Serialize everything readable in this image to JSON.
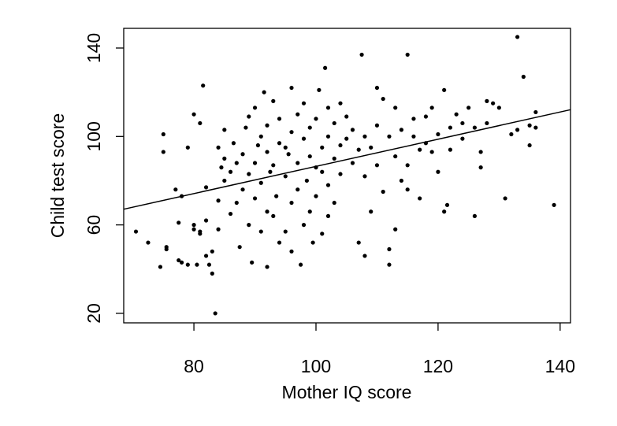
{
  "chart_data": {
    "type": "scatter",
    "x_label": "Mother IQ score",
    "y_label": "Child test score",
    "color": "#000000",
    "xlim": [
      68.5,
      141.7
    ],
    "ylim": [
      15.7,
      148.9
    ],
    "xticks": [
      80,
      100,
      120,
      140
    ],
    "yticks": [
      20,
      60,
      100,
      140
    ],
    "x": [
      70.5,
      72.5,
      74.5,
      75,
      75,
      75.5,
      75.5,
      77,
      77.5,
      77.5,
      78,
      78,
      79,
      79,
      80,
      80,
      80,
      80.5,
      81,
      81,
      81,
      81.5,
      82,
      82,
      82,
      82.5,
      83,
      83,
      83.5,
      84,
      84,
      84,
      84.5,
      85,
      85,
      85,
      86,
      86,
      86.5,
      87,
      87,
      87.5,
      88,
      88,
      88.5,
      89,
      89,
      89,
      89.5,
      90,
      90,
      90,
      90.5,
      91,
      91,
      91,
      91.5,
      92,
      92,
      92,
      92,
      92.5,
      93,
      93,
      93,
      93.5,
      94,
      94,
      94,
      95,
      95,
      95,
      95.5,
      96,
      96,
      96,
      96,
      97,
      97,
      97,
      97.5,
      98,
      98,
      98,
      98.5,
      99,
      99,
      99,
      99.5,
      100,
      100,
      100,
      100.5,
      101,
      101,
      101,
      101.5,
      102,
      102,
      102,
      102,
      103,
      103,
      103,
      104,
      104,
      104,
      105,
      105,
      106,
      106,
      107,
      107,
      107.5,
      108,
      108,
      108,
      109,
      109,
      110,
      110,
      110,
      111,
      111,
      112,
      112,
      112,
      113,
      113,
      113,
      114,
      114,
      115,
      115,
      115,
      116,
      116,
      117,
      117,
      118,
      118,
      119,
      119,
      120,
      120,
      121,
      121,
      121.5,
      122,
      122,
      123,
      124,
      124,
      125,
      126,
      126,
      127,
      127,
      128,
      128,
      129,
      130,
      131,
      132,
      133,
      133,
      134,
      135,
      135,
      136,
      136,
      139
    ],
    "y": [
      57,
      52,
      41,
      101,
      93,
      50,
      49,
      76,
      61,
      44,
      43,
      73,
      95,
      42,
      60,
      58,
      110,
      42,
      57,
      56,
      106,
      123,
      77,
      62,
      46,
      42,
      38,
      48,
      20,
      71,
      95,
      58,
      86,
      80,
      103,
      90,
      84,
      65,
      97,
      88,
      70,
      50,
      92,
      76,
      104,
      109,
      60,
      83,
      43,
      113,
      88,
      72,
      96,
      57,
      100,
      79,
      120,
      105,
      93,
      66,
      41,
      84,
      116,
      64,
      87,
      73,
      97,
      52,
      108,
      82,
      95,
      57,
      92,
      122,
      102,
      70,
      48,
      88,
      76,
      110,
      42,
      99,
      60,
      115,
      80,
      104,
      66,
      91,
      52,
      86,
      108,
      73,
      121,
      95,
      56,
      84,
      131,
      113,
      100,
      64,
      78,
      90,
      106,
      70,
      115,
      96,
      83,
      99,
      109,
      88,
      103,
      94,
      52,
      137,
      46,
      100,
      82,
      66,
      95,
      122,
      105,
      87,
      117,
      75,
      100,
      42,
      49,
      91,
      113,
      58,
      103,
      80,
      137,
      87,
      76,
      100,
      108,
      94,
      72,
      109,
      97,
      93,
      113,
      101,
      84,
      121,
      66,
      69,
      104,
      94,
      110,
      106,
      99,
      113,
      64,
      104,
      93,
      86,
      116,
      106,
      115,
      113,
      72,
      101,
      145,
      103,
      127,
      96,
      105,
      111,
      104,
      69
    ],
    "fit_line": {
      "x": [
        68.5,
        141.7
      ],
      "y": [
        67.1,
        112.1
      ]
    }
  }
}
